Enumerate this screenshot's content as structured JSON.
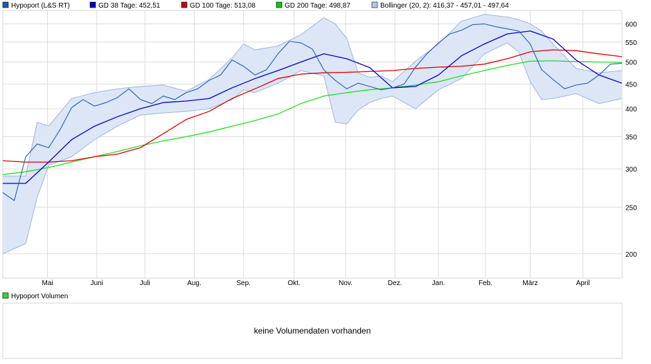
{
  "legend": [
    {
      "label": "Hypoport (L&S RT)",
      "swatch": "#1f5fa8",
      "border": "#000000"
    },
    {
      "label": "GD 38 Tage: 452,51",
      "swatch": "#0000cc",
      "border": "#000000"
    },
    {
      "label": "GD 100 Tage: 513,08",
      "swatch": "#cc0000",
      "border": "#000000"
    },
    {
      "label": "GD 200 Tage: 498,87",
      "swatch": "#00cc00",
      "border": "#000000"
    },
    {
      "label": "Bollinger (20, 2): 416,37 - 457,01 - 497,64",
      "swatch": "#b8c8ea",
      "border": "#000000"
    }
  ],
  "volume_panel": {
    "legend_label": "Hypoport Volumen",
    "legend_swatch": "#44cc44",
    "empty_message": "keine Volumendaten vorhanden"
  },
  "colors": {
    "price": "#2060b0",
    "gd38": "#0000cc",
    "gd100": "#dd0000",
    "gd200": "#22dd22",
    "bollinger_fill": "#dce6f7",
    "bollinger_edge": "#9fb4dc",
    "grid": "#dcdcdc"
  },
  "chart_data": {
    "type": "line",
    "y_scale": "log",
    "ylim": [
      178,
      640
    ],
    "y_ticks": [
      200,
      250,
      300,
      350,
      400,
      450,
      500,
      550,
      600
    ],
    "x_ticks": [
      "Mai",
      "Juni",
      "Juli",
      "Aug.",
      "Sep.",
      "Okt.",
      "Nov.",
      "Dez.",
      "Jan.",
      "Feb.",
      "März",
      "April"
    ],
    "x_ticks_index": [
      3.9,
      8.2,
      12.4,
      16.7,
      21.0,
      25.4,
      29.9,
      34.2,
      38.0,
      42.1,
      46.0,
      50.6
    ],
    "x_range": [
      0,
      54
    ],
    "series": [
      {
        "name": "Hypoport (L&S RT)",
        "key": "price",
        "x": [
          0,
          1,
          2,
          3,
          4,
          5,
          6,
          7,
          8,
          9,
          10,
          11,
          12,
          13,
          14,
          15,
          16,
          17,
          18,
          19,
          20,
          21,
          22,
          23,
          24,
          25,
          26,
          27,
          28,
          29,
          30,
          31,
          32,
          33,
          34,
          35,
          36,
          37,
          38,
          39,
          40,
          41,
          42,
          43,
          44,
          45,
          46,
          47,
          48,
          49,
          50,
          51,
          52,
          53,
          54
        ],
        "values": [
          268,
          258,
          318,
          338,
          332,
          362,
          402,
          418,
          405,
          412,
          422,
          440,
          418,
          410,
          425,
          418,
          432,
          440,
          458,
          470,
          505,
          490,
          470,
          482,
          520,
          552,
          548,
          532,
          482,
          458,
          440,
          452,
          445,
          438,
          442,
          450,
          488,
          520,
          548,
          572,
          582,
          598,
          600,
          592,
          586,
          580,
          545,
          482,
          460,
          440,
          448,
          452,
          470,
          495,
          497
        ]
      },
      {
        "name": "GD 38 Tage: 452,51",
        "key": "gd38",
        "x": [
          0,
          2,
          4,
          6,
          8,
          10,
          12,
          14,
          16,
          18,
          20,
          22,
          24,
          26,
          28,
          30,
          32,
          34,
          36,
          38,
          40,
          42,
          44,
          46,
          48,
          50,
          52,
          54
        ],
        "values": [
          280,
          280,
          310,
          345,
          368,
          385,
          400,
          412,
          415,
          420,
          442,
          462,
          480,
          500,
          520,
          508,
          487,
          442,
          445,
          470,
          515,
          545,
          572,
          580,
          558,
          505,
          470,
          452
        ]
      },
      {
        "name": "GD 100 Tage: 513,08",
        "key": "gd100",
        "x": [
          0,
          2,
          4,
          6,
          8,
          10,
          12,
          14,
          16,
          18,
          20,
          22,
          24,
          26,
          28,
          30,
          32,
          34,
          36,
          38,
          40,
          42,
          44,
          46,
          48,
          50,
          52,
          54
        ],
        "values": [
          312,
          310,
          310,
          312,
          318,
          322,
          332,
          355,
          380,
          395,
          420,
          440,
          462,
          472,
          475,
          476,
          478,
          480,
          485,
          488,
          490,
          495,
          508,
          525,
          530,
          528,
          520,
          513
        ]
      },
      {
        "name": "GD 200 Tage: 498,87",
        "key": "gd200",
        "x": [
          0,
          2,
          4,
          6,
          8,
          10,
          12,
          14,
          16,
          18,
          20,
          22,
          24,
          26,
          28,
          30,
          32,
          34,
          36,
          38,
          40,
          42,
          44,
          46,
          48,
          50,
          52,
          54
        ],
        "values": [
          292,
          296,
          302,
          310,
          318,
          326,
          335,
          343,
          350,
          358,
          368,
          378,
          390,
          410,
          425,
          432,
          438,
          442,
          448,
          455,
          468,
          480,
          492,
          502,
          503,
          501,
          500,
          499
        ]
      },
      {
        "name": "Bollinger upper",
        "key": "boll_up",
        "x": [
          0,
          2,
          3,
          4,
          6,
          8,
          10,
          12,
          14,
          16,
          18,
          20,
          21,
          22,
          24,
          26,
          28,
          29,
          30,
          31,
          32,
          33,
          34,
          36,
          38,
          40,
          42,
          44,
          45,
          46,
          47,
          48,
          50,
          52,
          54
        ],
        "values": [
          290,
          290,
          375,
          368,
          420,
          432,
          440,
          445,
          448,
          435,
          460,
          510,
          545,
          530,
          540,
          570,
          618,
          600,
          560,
          475,
          465,
          468,
          455,
          502,
          545,
          608,
          628,
          620,
          612,
          600,
          580,
          545,
          485,
          475,
          480
        ]
      },
      {
        "name": "Bollinger lower",
        "key": "boll_low",
        "x": [
          0,
          2,
          3,
          4,
          6,
          8,
          10,
          12,
          14,
          16,
          18,
          20,
          21,
          22,
          24,
          26,
          28,
          29,
          30,
          31,
          32,
          33,
          34,
          36,
          38,
          40,
          42,
          44,
          45,
          46,
          47,
          48,
          50,
          52,
          54
        ],
        "values": [
          200,
          210,
          262,
          305,
          318,
          345,
          368,
          388,
          392,
          395,
          400,
          418,
          438,
          432,
          452,
          480,
          468,
          375,
          372,
          398,
          412,
          420,
          425,
          400,
          438,
          462,
          520,
          548,
          525,
          455,
          418,
          420,
          430,
          410,
          420
        ]
      }
    ]
  }
}
